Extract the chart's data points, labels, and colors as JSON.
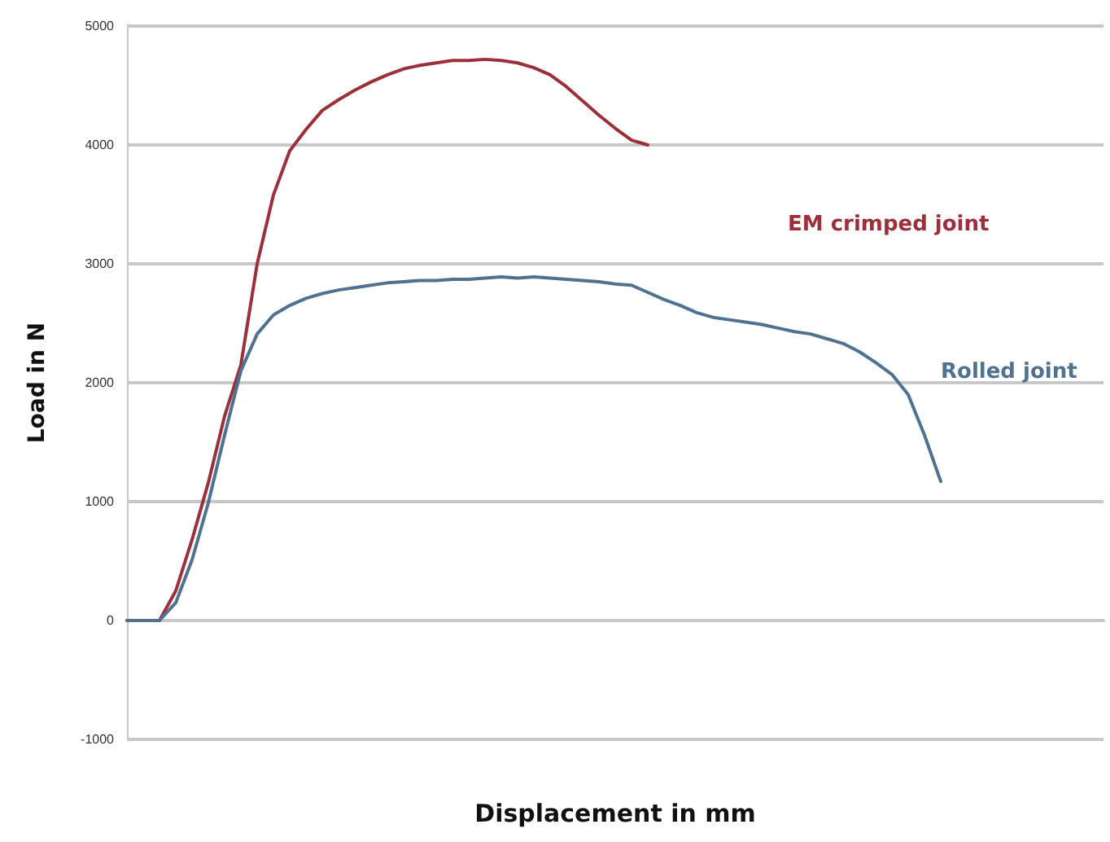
{
  "chart_data": {
    "type": "line",
    "xlabel": "Displacement in mm",
    "ylabel": "Load in N",
    "categories": [
      null,
      null,
      null,
      null,
      null,
      null,
      null,
      null,
      null,
      null,
      null,
      null,
      null,
      null,
      null,
      null,
      null,
      null,
      null,
      null,
      null,
      null,
      null,
      null,
      null,
      null,
      null,
      null,
      null,
      null,
      null,
      null,
      null,
      null,
      null,
      null,
      null,
      null,
      null,
      null,
      null,
      null,
      null,
      null,
      null,
      null,
      null,
      null,
      null,
      null,
      null,
      null,
      null,
      null,
      null,
      null,
      null,
      null,
      null,
      null,
      null
    ],
    "series": [
      {
        "name": "EM crimped joint",
        "color": "#9b2f3a",
        "values": [
          0,
          0,
          0,
          250,
          680,
          1160,
          1720,
          2150,
          3000,
          3580,
          3950,
          4130,
          4290,
          4380,
          4460,
          4530,
          4590,
          4640,
          4670,
          4690,
          4710,
          4710,
          4720,
          4710,
          4690,
          4650,
          4590,
          4490,
          4370,
          4250,
          4140,
          4040,
          4000,
          null,
          null,
          null,
          null,
          null,
          null,
          null,
          null,
          null,
          null,
          null,
          null,
          null,
          null,
          null,
          null,
          null,
          null,
          null,
          null,
          null,
          null,
          null,
          null,
          null,
          null,
          null,
          null
        ]
      },
      {
        "name": "Rolled joint",
        "color": "#4f7291",
        "values": [
          0,
          0,
          0,
          150,
          510,
          990,
          1560,
          2100,
          2410,
          2570,
          2650,
          2710,
          2750,
          2780,
          2800,
          2820,
          2840,
          2850,
          2860,
          2860,
          2870,
          2870,
          2880,
          2890,
          2880,
          2890,
          2880,
          2870,
          2860,
          2850,
          2830,
          2820,
          2760,
          2700,
          2650,
          2590,
          2550,
          2530,
          2510,
          2490,
          2460,
          2430,
          2410,
          2370,
          2330,
          2260,
          2170,
          2070,
          1900,
          1560,
          1170,
          null,
          null,
          null,
          null,
          null,
          null,
          null,
          null,
          null,
          null
        ]
      }
    ],
    "ylim": [
      -1000,
      5000
    ],
    "yticks": [
      -1000,
      0,
      1000,
      2000,
      3000,
      4000,
      5000
    ],
    "grid": "y",
    "legend": false,
    "tick_labels": "y",
    "marker": "none",
    "line_style": "solid"
  }
}
